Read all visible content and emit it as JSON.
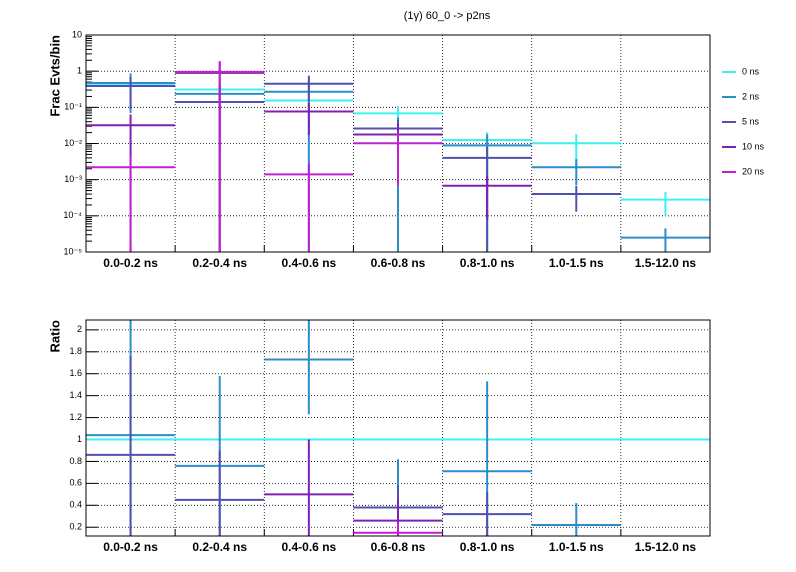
{
  "chart_data": [
    {
      "type": "step",
      "title": "(1γ) 60_0 -> p2ns",
      "y_label": "Frac Evts/bin",
      "log_y": true,
      "grid": true,
      "legend": "right",
      "categories": [
        "0.0-0.2 ns",
        "0.2-0.4 ns",
        "0.4-0.6 ns",
        "0.6-0.8 ns",
        "0.8-1.0 ns",
        "1.0-1.5 ns",
        "1.5-12.0 ns"
      ],
      "ylim": [
        1e-05,
        10
      ],
      "yticks": [
        {
          "value": 1e-05,
          "label": "10⁻⁵"
        },
        {
          "value": 0.0001,
          "label": "10⁻⁴"
        },
        {
          "value": 0.001,
          "label": "10⁻³"
        },
        {
          "value": 0.01,
          "label": "10⁻²"
        },
        {
          "value": 0.1,
          "label": "10⁻¹"
        },
        1,
        10
      ],
      "series": [
        {
          "name": "0 ns",
          "color": "#3ef0f0",
          "values": [
            0.45,
            0.31,
            0.155,
            0.068,
            0.0125,
            0.0102,
            0.00028
          ],
          "errors": [
            0.05,
            0.04,
            0.03,
            0.04,
            0.008,
            0.008,
            0.00018
          ]
        },
        {
          "name": "2 ns",
          "color": "#2a8ec8",
          "values": [
            0.47,
            0.235,
            0.27,
            0.026,
            0.0089,
            0.0022,
            2.5e-05
          ],
          "errors": [
            0.4,
            0.23,
            0.27,
            0.026,
            0.009,
            0.0015,
            2e-05
          ]
        },
        {
          "name": "5 ns",
          "color": "#5050b0",
          "values": [
            0.39,
            0.14,
            0.45,
            0.026,
            0.004,
            0.0004,
            null
          ],
          "errors": [
            0.3,
            0.14,
            0.3,
            0.018,
            0.004,
            0.00027,
            null
          ]
        },
        {
          "name": "10 ns",
          "color": "#8020b0",
          "values": [
            0.032,
            0.9,
            0.077,
            0.0177,
            0.00068,
            null,
            null
          ],
          "errors": [
            0.032,
            0.9,
            0.06,
            0.017,
            0.0006,
            null,
            null
          ]
        },
        {
          "name": "20 ns",
          "color": "#c020d0",
          "values": [
            0.0022,
            0.95,
            0.0014,
            0.0102,
            null,
            null,
            null
          ],
          "errors": [
            0.0022,
            0.95,
            0.0014,
            0.0095,
            null,
            null,
            null
          ]
        }
      ]
    },
    {
      "type": "step",
      "y_label": "Ratio",
      "log_y": false,
      "grid": true,
      "categories": [
        "0.0-0.2 ns",
        "0.2-0.4 ns",
        "0.4-0.6 ns",
        "0.6-0.8 ns",
        "0.8-1.0 ns",
        "1.0-1.5 ns",
        "1.5-12.0 ns"
      ],
      "ylim": [
        0.12,
        2.09
      ],
      "yticks": [
        0.2,
        0.4,
        0.6,
        0.8,
        1,
        1.2,
        1.4,
        1.6,
        1.8,
        2
      ],
      "series": [
        {
          "color": "#3ef0f0",
          "values": [
            1,
            1,
            1,
            1,
            1,
            1,
            1
          ],
          "errors": [
            null,
            null,
            null,
            null,
            null,
            null,
            null
          ]
        },
        {
          "color": "#2a8ec8",
          "values": [
            1.04,
            0.76,
            1.73,
            0.38,
            0.71,
            0.22,
            null
          ],
          "errors": [
            1.1,
            0.82,
            0.5,
            0.44,
            0.82,
            0.2,
            null
          ]
        },
        {
          "color": "#5050b0",
          "values": [
            0.86,
            0.45,
            null,
            0.38,
            0.32,
            null,
            null
          ],
          "errors": [
            0.9,
            0.45,
            null,
            0.2,
            0.2,
            null,
            null
          ]
        },
        {
          "color": "#8020b0",
          "values": [
            null,
            null,
            0.5,
            0.26,
            null,
            null,
            null
          ],
          "errors": [
            null,
            null,
            0.5,
            0.2,
            null,
            null,
            null
          ]
        },
        {
          "color": "#c020d0",
          "values": [
            null,
            null,
            null,
            0.15,
            null,
            null,
            null
          ],
          "errors": [
            null,
            null,
            null,
            0.1,
            null,
            null,
            null
          ]
        }
      ]
    }
  ]
}
